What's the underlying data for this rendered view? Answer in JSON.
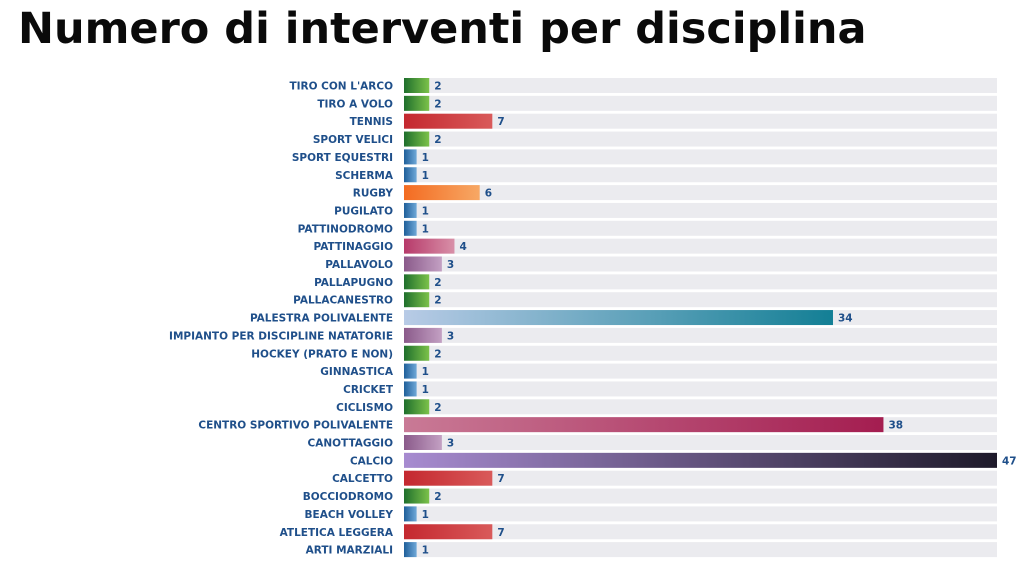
{
  "title": "Numero di interventi per disciplina",
  "colors": {
    "green": [
      "#1f6f2c",
      "#7cc24a"
    ],
    "red": [
      "#c4282f",
      "#d95a5a"
    ],
    "blue": [
      "#1f5f9a",
      "#6fa8d8"
    ],
    "orange": [
      "#f36b21",
      "#f7a865"
    ],
    "pink": [
      "#b73a6a",
      "#d890a8"
    ],
    "mauve": [
      "#8a5a8a",
      "#c3a0c3"
    ],
    "teal": [
      "#b8cbe6",
      "#137f95"
    ],
    "crimson": [
      "#c97a96",
      "#a41d50"
    ],
    "dark": [
      "#a78bd0",
      "#1e1a2a"
    ],
    "track": "#ebebef",
    "label": "#1f4f8a"
  },
  "chart_data": {
    "type": "bar",
    "orientation": "horizontal",
    "title": "Numero di interventi per disciplina",
    "xlim": [
      0,
      47
    ],
    "grid": false,
    "legend": "none",
    "categories": [
      "TIRO CON L'ARCO",
      "TIRO A VOLO",
      "TENNIS",
      "SPORT VELICI",
      "SPORT EQUESTRI",
      "SCHERMA",
      "RUGBY",
      "PUGILATO",
      "PATTINODROMO",
      "PATTINAGGIO",
      "PALLAVOLO",
      "PALLAPUGNO",
      "PALLACANESTRO",
      "PALESTRA POLIVALENTE",
      "IMPIANTO PER DISCIPLINE NATATORIE",
      "HOCKEY (PRATO E NON)",
      "GINNASTICA",
      "CRICKET",
      "CICLISMO",
      "CENTRO SPORTIVO POLIVALENTE",
      "CANOTTAGGIO",
      "CALCIO",
      "CALCETTO",
      "BOCCIODROMO",
      "BEACH VOLLEY",
      "ATLETICA LEGGERA",
      "ARTI MARZIALI"
    ],
    "values": [
      2,
      2,
      7,
      2,
      1,
      1,
      6,
      1,
      1,
      4,
      3,
      2,
      2,
      34,
      3,
      2,
      1,
      1,
      2,
      38,
      3,
      47,
      7,
      2,
      1,
      7,
      1
    ],
    "bar_colors": [
      "green",
      "green",
      "red",
      "green",
      "blue",
      "blue",
      "orange",
      "blue",
      "blue",
      "pink",
      "mauve",
      "green",
      "green",
      "teal",
      "mauve",
      "green",
      "blue",
      "blue",
      "green",
      "crimson",
      "mauve",
      "dark",
      "red",
      "green",
      "blue",
      "red",
      "blue"
    ]
  }
}
